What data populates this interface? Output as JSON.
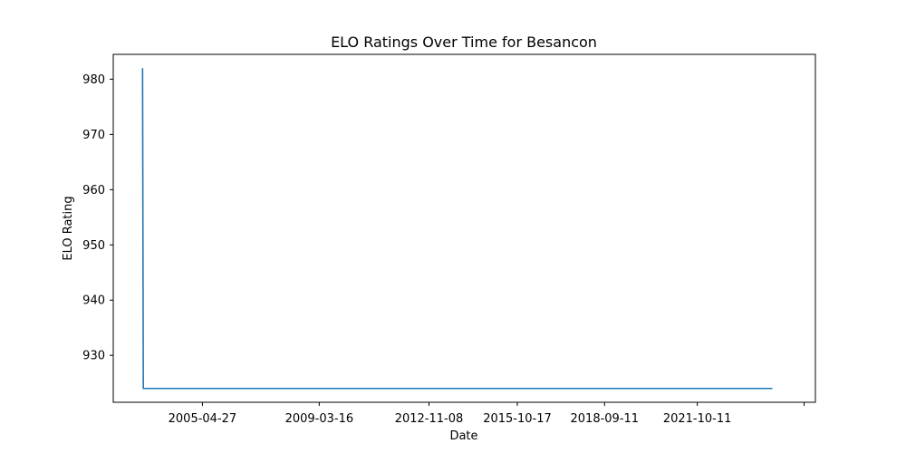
{
  "chart_data": {
    "type": "line",
    "title": "ELO Ratings Over Time for Besancon",
    "xlabel": "Date",
    "ylabel": "ELO Rating",
    "x_scale": "date",
    "xlim": [
      "2002-05-10",
      "2025-09-15"
    ],
    "ylim": [
      921.5,
      984.5
    ],
    "grid": false,
    "x_ticks": [
      {
        "value": "2005-04-27",
        "label": "2005-04-27"
      },
      {
        "value": "2009-03-16",
        "label": "2009-03-16"
      },
      {
        "value": "2012-11-08",
        "label": "2012-11-08"
      },
      {
        "value": "2015-10-17",
        "label": "2015-10-17"
      },
      {
        "value": "2018-09-11",
        "label": "2018-09-11"
      },
      {
        "value": "2021-10-11",
        "label": "2021-10-11"
      },
      {
        "value": "2025-05-01",
        "label": ""
      }
    ],
    "y_ticks": [
      930,
      940,
      950,
      960,
      970,
      980
    ],
    "series": [
      {
        "color": "#1f77b4",
        "points": [
          {
            "x": "2003-05-01",
            "y": 982
          },
          {
            "x": "2003-05-10",
            "y": 924
          },
          {
            "x": "2024-04-10",
            "y": 924
          }
        ]
      }
    ]
  }
}
